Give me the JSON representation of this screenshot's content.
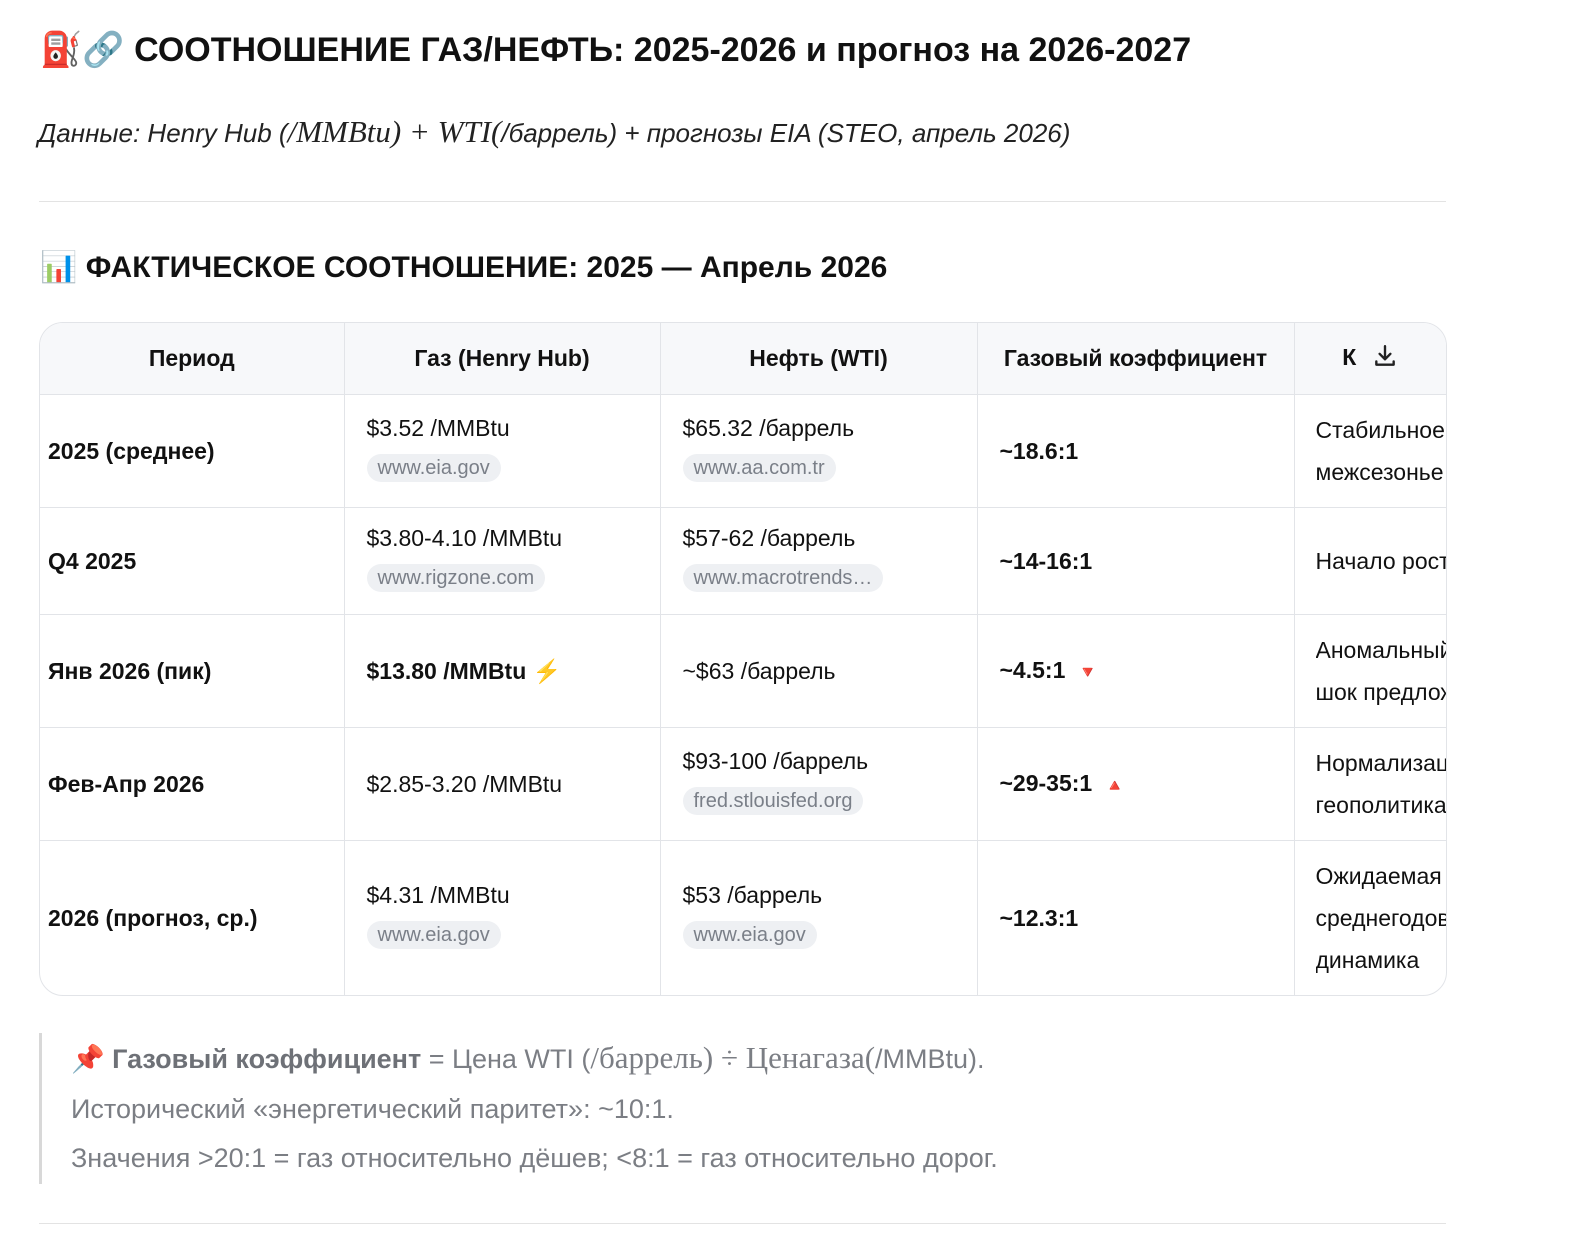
{
  "header": {
    "title": "⛽🔗 СООТНОШЕНИЕ ГАЗ/НЕФТЬ: 2025-2026 и прогноз на 2026-2027",
    "subtitle": [
      {
        "text": "Данные: Henry Hub (",
        "math": false
      },
      {
        "text": "/MMBtu) + WTI(",
        "math": true
      },
      {
        "text": "/баррель) + прогнозы EIA (STEO, апрель 2026)",
        "math": false
      }
    ]
  },
  "section": {
    "title": "📊 ФАКТИЧЕСКОЕ СООТНОШЕНИЕ: 2025 — Апрель 2026"
  },
  "table": {
    "columns": [
      "Период",
      "Газ (Henry Hub)",
      "Нефть (WTI)",
      "Газовый коэффициент",
      "К"
    ],
    "rows": [
      {
        "period": "2025 (среднее)",
        "gas": {
          "text": "$3.52 /MMBtu",
          "source": "www.eia.gov",
          "bold": false
        },
        "oil": {
          "text": "$65.32 /баррель",
          "source": "www.aa.com.tr"
        },
        "ratio": {
          "text": "~18.6:1"
        },
        "comment": [
          "Стабильное",
          "межсезонье"
        ]
      },
      {
        "period": "Q4 2025",
        "gas": {
          "text": "$3.80-4.10 /MMBtu",
          "source": "www.rigzone.com",
          "bold": false
        },
        "oil": {
          "text": "$57-62 /баррель",
          "source": "www.macrotrends…"
        },
        "ratio": {
          "text": "~14-16:1"
        },
        "comment": [
          "Начало роста"
        ]
      },
      {
        "period": "Янв 2026 (пик)",
        "gas": {
          "text": "$13.80 /MMBtu ⚡",
          "bold": true
        },
        "oil": {
          "text": "~$63 /баррель"
        },
        "ratio": {
          "text": "~4.5:1",
          "trend": "🔻"
        },
        "comment": [
          "Аномальный",
          "шок предложения"
        ]
      },
      {
        "period": "Фев-Апр 2026",
        "gas": {
          "text": "$2.85-3.20 /MMBtu",
          "bold": false
        },
        "oil": {
          "text": "$93-100 /баррель",
          "source": "fred.stlouisfed.org"
        },
        "ratio": {
          "text": "~29-35:1",
          "trend": "🔺"
        },
        "comment": [
          "Нормализация",
          "геополитика"
        ]
      },
      {
        "period": "2026 (прогноз, ср.)",
        "gas": {
          "text": "$4.31 /MMBtu",
          "source": "www.eia.gov",
          "bold": false
        },
        "oil": {
          "text": "$53 /баррель",
          "source": "www.eia.gov"
        },
        "ratio": {
          "text": "~12.3:1"
        },
        "comment": [
          "Ожидаемая",
          "среднегодовая",
          "динамика"
        ]
      }
    ]
  },
  "note": {
    "lines": [
      [
        {
          "text": "📌 ",
          "bold": false,
          "math": false
        },
        {
          "text": "Газовый коэффициент",
          "bold": true,
          "math": false
        },
        {
          "text": " = Цена WTI (",
          "bold": false,
          "math": false
        },
        {
          "text": "/баррель) ÷ Ценагаза(",
          "bold": false,
          "math": true
        },
        {
          "text": "/MMBtu).",
          "bold": false,
          "math": false
        }
      ],
      [
        {
          "text": "Исторический «энергетический паритет»: ~10:1.",
          "bold": false,
          "math": false
        }
      ],
      [
        {
          "text": "Значения >20:1 = газ относительно дёшев; <8:1 = газ относительно дорог.",
          "bold": false,
          "math": false
        }
      ]
    ]
  }
}
